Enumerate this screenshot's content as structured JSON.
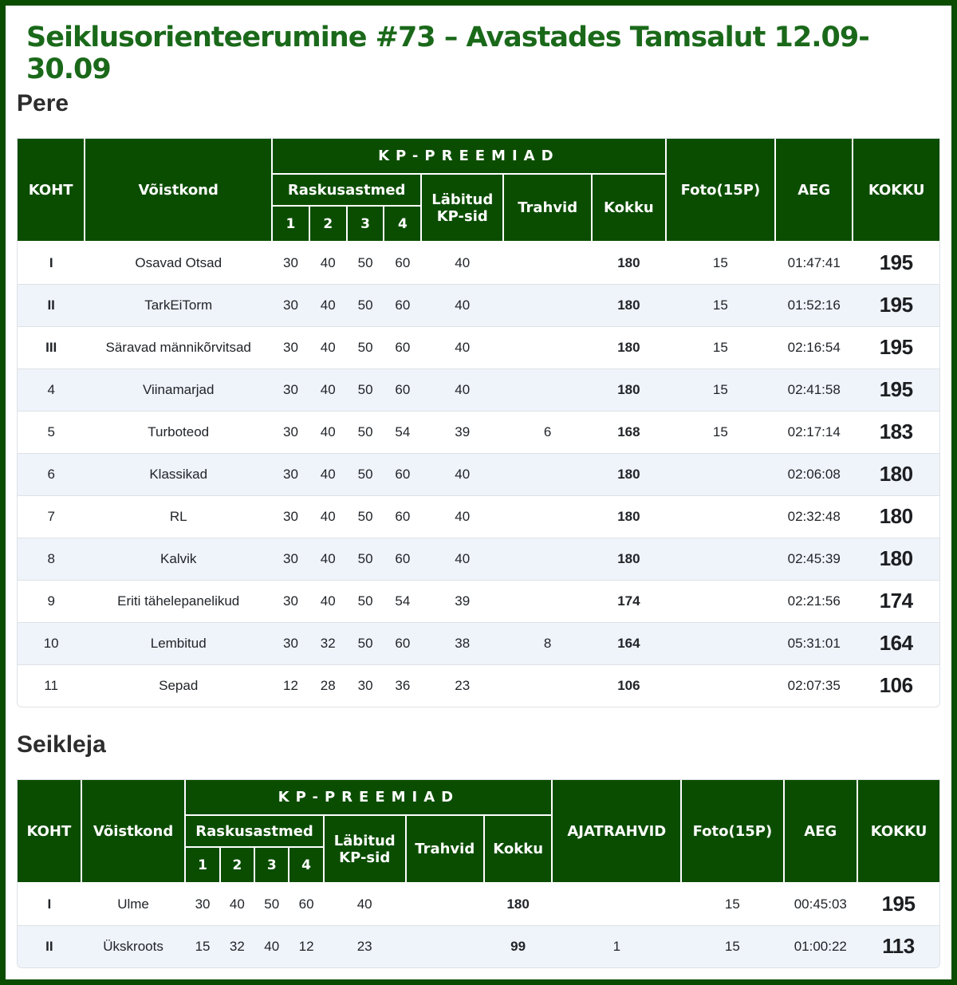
{
  "page": {
    "title": "Seiklusorienteerumine #73 – Avastades Tamsalut 12.09-30.09",
    "colors": {
      "page_border": "#0b4d00",
      "header_bg": "#0b4d00",
      "title_green": "#1a691a",
      "stripe": "#eff3fa",
      "row_line": "#dee2e6"
    }
  },
  "tables": [
    {
      "section_title": "Pere",
      "header": {
        "koht": "KOHT",
        "voistkond": "Võistkond",
        "kp_preemiad": "KP-PREEMIAD",
        "raskusastmed": "Raskusastmed",
        "levels": [
          "1",
          "2",
          "3",
          "4"
        ],
        "labitud": "Läbitud KP-sid",
        "trahvid": "Trahvid",
        "kokku": "Kokku",
        "foto": "Foto(15P)",
        "aeg": "AEG",
        "kokku_total": "KOKKU"
      },
      "rows": [
        {
          "koht": "I",
          "team": "Osavad Otsad",
          "r": [
            "30",
            "40",
            "50",
            "60"
          ],
          "labitud": "40",
          "trahvid": "",
          "kokku": "180",
          "foto": "15",
          "aeg": "01:47:41",
          "total": "195"
        },
        {
          "koht": "II",
          "team": "TarkEiTorm",
          "r": [
            "30",
            "40",
            "50",
            "60"
          ],
          "labitud": "40",
          "trahvid": "",
          "kokku": "180",
          "foto": "15",
          "aeg": "01:52:16",
          "total": "195"
        },
        {
          "koht": "III",
          "team": "Säravad männikõrvitsad",
          "r": [
            "30",
            "40",
            "50",
            "60"
          ],
          "labitud": "40",
          "trahvid": "",
          "kokku": "180",
          "foto": "15",
          "aeg": "02:16:54",
          "total": "195"
        },
        {
          "koht": "4",
          "team": "Viinamarjad",
          "r": [
            "30",
            "40",
            "50",
            "60"
          ],
          "labitud": "40",
          "trahvid": "",
          "kokku": "180",
          "foto": "15",
          "aeg": "02:41:58",
          "total": "195"
        },
        {
          "koht": "5",
          "team": "Turboteod",
          "r": [
            "30",
            "40",
            "50",
            "54"
          ],
          "labitud": "39",
          "trahvid": "6",
          "kokku": "168",
          "foto": "15",
          "aeg": "02:17:14",
          "total": "183"
        },
        {
          "koht": "6",
          "team": "Klassikad",
          "r": [
            "30",
            "40",
            "50",
            "60"
          ],
          "labitud": "40",
          "trahvid": "",
          "kokku": "180",
          "foto": "",
          "aeg": "02:06:08",
          "total": "180"
        },
        {
          "koht": "7",
          "team": "RL",
          "r": [
            "30",
            "40",
            "50",
            "60"
          ],
          "labitud": "40",
          "trahvid": "",
          "kokku": "180",
          "foto": "",
          "aeg": "02:32:48",
          "total": "180"
        },
        {
          "koht": "8",
          "team": "Kalvik",
          "r": [
            "30",
            "40",
            "50",
            "60"
          ],
          "labitud": "40",
          "trahvid": "",
          "kokku": "180",
          "foto": "",
          "aeg": "02:45:39",
          "total": "180"
        },
        {
          "koht": "9",
          "team": "Eriti tähelepanelikud",
          "r": [
            "30",
            "40",
            "50",
            "54"
          ],
          "labitud": "39",
          "trahvid": "",
          "kokku": "174",
          "foto": "",
          "aeg": "02:21:56",
          "total": "174"
        },
        {
          "koht": "10",
          "team": "Lembitud",
          "r": [
            "30",
            "32",
            "50",
            "60"
          ],
          "labitud": "38",
          "trahvid": "8",
          "kokku": "164",
          "foto": "",
          "aeg": "05:31:01",
          "total": "164"
        },
        {
          "koht": "11",
          "team": "Sepad",
          "r": [
            "12",
            "28",
            "30",
            "36"
          ],
          "labitud": "23",
          "trahvid": "",
          "kokku": "106",
          "foto": "",
          "aeg": "02:07:35",
          "total": "106"
        }
      ]
    },
    {
      "section_title": "Seikleja",
      "header": {
        "koht": "KOHT",
        "voistkond": "Võistkond",
        "kp_preemiad": "KP-PREEMIAD",
        "raskusastmed": "Raskusastmed",
        "levels": [
          "1",
          "2",
          "3",
          "4"
        ],
        "labitud": "Läbitud KP-sid",
        "trahvid": "Trahvid",
        "kokku": "Kokku",
        "ajatrahvid": "AJATRAHVID",
        "foto": "Foto(15P)",
        "aeg": "AEG",
        "kokku_total": "KOKKU"
      },
      "rows": [
        {
          "koht": "I",
          "team": "Ulme",
          "r": [
            "30",
            "40",
            "50",
            "60"
          ],
          "labitud": "40",
          "trahvid": "",
          "kokku": "180",
          "ajatrahvid": "",
          "foto": "15",
          "aeg": "00:45:03",
          "total": "195"
        },
        {
          "koht": "II",
          "team": "Ükskroots",
          "r": [
            "15",
            "32",
            "40",
            "12"
          ],
          "labitud": "23",
          "trahvid": "",
          "kokku": "99",
          "ajatrahvid": "1",
          "foto": "15",
          "aeg": "01:00:22",
          "total": "113"
        }
      ]
    }
  ]
}
